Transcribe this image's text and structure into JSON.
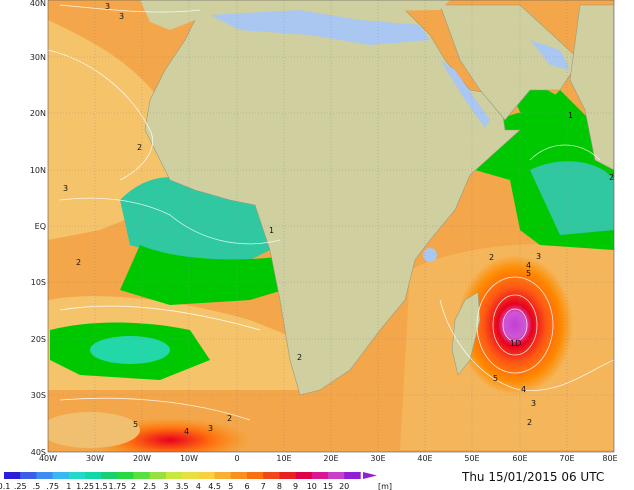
{
  "map": {
    "lat_labels": [
      "40N",
      "30N",
      "20N",
      "10N",
      "EQ",
      "10S",
      "20S",
      "30S",
      "40S"
    ],
    "lon_labels": [
      "40W",
      "30W",
      "20W",
      "10W",
      "0",
      "10E",
      "20E",
      "30E",
      "40E",
      "50E",
      "60E",
      "70E",
      "80E"
    ],
    "contour_labels": [
      "3",
      "3",
      "2",
      "3",
      "1",
      "2",
      "2",
      "3",
      "4",
      "5",
      "1D",
      "5",
      "4",
      "3",
      "2",
      "2",
      "2",
      "5",
      "4",
      "3",
      "1",
      "2"
    ],
    "colors": {
      "land": "#cfcfa0",
      "lake": "#a9c7f0",
      "calm": "#00c800",
      "moderate": "#f5c36a",
      "rough": "#ff8a00",
      "storm_red": "#e8001e",
      "storm_magenta": "#c040d0"
    }
  },
  "legend": {
    "labels": [
      "0.1",
      ".25",
      ".5",
      ".75",
      "1",
      "1.25",
      "1.5",
      "1.75",
      "2",
      "2.5",
      "3",
      "3.5",
      "4",
      "4.5",
      "5",
      "6",
      "7",
      "8",
      "9",
      "10",
      "15",
      "20"
    ],
    "unit": "[m]",
    "colors": [
      "#2c1ed6",
      "#3a5ee6",
      "#3f8cf0",
      "#38b8f0",
      "#22d8c8",
      "#12d8a8",
      "#18d070",
      "#28d840",
      "#58e040",
      "#98e040",
      "#c8e840",
      "#e8e040",
      "#f8d040",
      "#f8b030",
      "#f89020",
      "#f87010",
      "#f04818",
      "#e82020",
      "#e00048",
      "#d81890",
      "#c840c8",
      "#9020d8"
    ]
  },
  "timestamp": "Thu 15/01/2015 06 UTC"
}
